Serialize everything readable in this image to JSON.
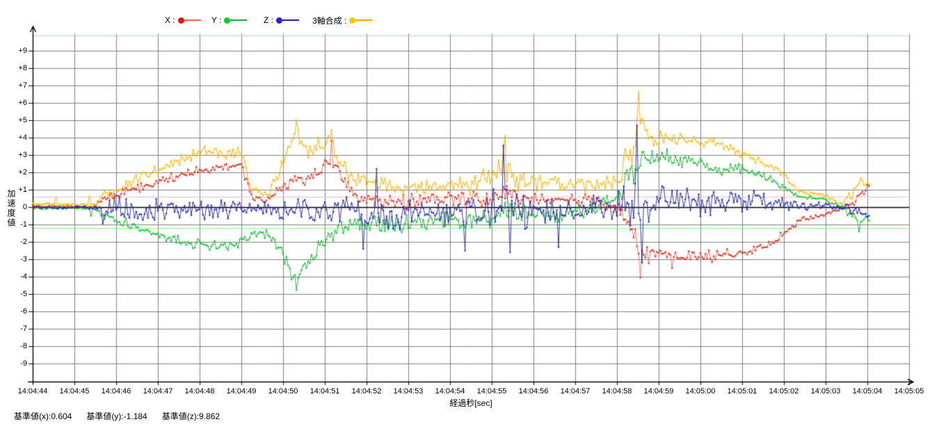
{
  "legend": {
    "items": [
      {
        "id": "x",
        "label": "X :",
        "dot_color": "#ee1100",
        "line_color": "#f4695f"
      },
      {
        "id": "y",
        "label": "Y :",
        "dot_color": "#10c828",
        "line_color": "#28a044"
      },
      {
        "id": "z",
        "label": "Z :",
        "dot_color": "#2222cc",
        "line_color": "#24248e"
      },
      {
        "id": "composite",
        "label": "3軸合成 :",
        "dot_color": "#ffc400",
        "line_color": "#f5a600"
      }
    ]
  },
  "axes": {
    "y_label": "加速度値",
    "x_label": "経過秒[sec]",
    "y_tick_labels": [
      "+9",
      "+8",
      "+7",
      "+6",
      "+5",
      "+4",
      "+3",
      "+2",
      "+1",
      "0",
      "-1",
      "-2",
      "-3",
      "-4",
      "-5",
      "-6",
      "-7",
      "-8",
      "-9"
    ],
    "x_tick_labels": [
      "14:04:44",
      "14:04:45",
      "14:04:46",
      "14:04:47",
      "14:04:48",
      "14:04:49",
      "14:04:50",
      "14:04:51",
      "14:04:52",
      "14:04:53",
      "14:04:54",
      "14:04:55",
      "14:04:56",
      "14:04:57",
      "14:04:58",
      "14:04:59",
      "14:05:00",
      "14:05:01",
      "14:05:02",
      "14:05:03",
      "14:05:04",
      "14:05:05"
    ]
  },
  "footer": {
    "items": [
      "基準値(x):0.604",
      "基準値(y):-1.184",
      "基準値(z):9.862"
    ]
  },
  "chart_data": {
    "type": "line",
    "title": "",
    "xlabel": "経過秒[sec]",
    "ylabel": "加速度値",
    "ylim": [
      -10,
      10
    ],
    "y_tick_step": 1,
    "grid": true,
    "legend_position": "top",
    "x_tick_labels": [
      "14:04:44",
      "14:04:45",
      "14:04:46",
      "14:04:47",
      "14:04:48",
      "14:04:49",
      "14:04:50",
      "14:04:51",
      "14:04:52",
      "14:04:53",
      "14:04:54",
      "14:04:55",
      "14:04:56",
      "14:04:57",
      "14:04:58",
      "14:04:59",
      "14:05:00",
      "14:05:01",
      "14:05:02",
      "14:05:03",
      "14:05:04",
      "14:05:05"
    ],
    "x_seconds_per_tick": 1,
    "sample_interval_sec": 0.04,
    "duration_sec": 20.04,
    "baselines": {
      "x": 0.604,
      "y": -1.184,
      "z": 9.862
    },
    "baseline_colors": {
      "x": "#ffc0cb",
      "y": "#90ee90",
      "z": "#b0d8e8"
    },
    "series": [
      {
        "name": "X",
        "line_color": "#f4695f",
        "marker_color": "#e02010",
        "envelope": [
          [
            0,
            0.03,
            0.1
          ],
          [
            1.5,
            0.03,
            0.1
          ],
          [
            1.62,
            0.35,
            0.3
          ],
          [
            2.2,
            0.8,
            0.3
          ],
          [
            3.0,
            1.5,
            0.35
          ],
          [
            3.8,
            2.05,
            0.35
          ],
          [
            4.5,
            2.3,
            0.3
          ],
          [
            5.0,
            2.35,
            0.3
          ],
          [
            5.12,
            1.4,
            0.5
          ],
          [
            5.25,
            0.55,
            0.3
          ],
          [
            5.6,
            0.35,
            0.3
          ],
          [
            5.9,
            1.1,
            0.5
          ],
          [
            6.4,
            1.7,
            0.5
          ],
          [
            6.9,
            1.9,
            0.5
          ],
          [
            7.12,
            2.9,
            0.75
          ],
          [
            7.35,
            2.0,
            0.6
          ],
          [
            7.6,
            0.9,
            0.5
          ],
          [
            8.2,
            0.35,
            0.5
          ],
          [
            9.0,
            0.35,
            0.5
          ],
          [
            10.0,
            0.45,
            0.5
          ],
          [
            11.0,
            0.5,
            0.45
          ],
          [
            11.3,
            0.85,
            0.6
          ],
          [
            11.7,
            0.4,
            0.5
          ],
          [
            12.5,
            0.45,
            0.5
          ],
          [
            13.4,
            0.4,
            0.45
          ],
          [
            13.9,
            0.1,
            0.4
          ],
          [
            14.25,
            -0.7,
            0.7
          ],
          [
            14.55,
            -2.7,
            1.1
          ],
          [
            14.85,
            -2.6,
            0.5
          ],
          [
            15.5,
            -2.9,
            0.45
          ],
          [
            16.2,
            -2.85,
            0.4
          ],
          [
            16.8,
            -2.7,
            0.35
          ],
          [
            17.3,
            -2.45,
            0.3
          ],
          [
            17.8,
            -1.9,
            0.3
          ],
          [
            18.2,
            -1.05,
            0.25
          ],
          [
            18.5,
            -0.7,
            0.2
          ],
          [
            19.0,
            -0.45,
            0.15
          ],
          [
            19.35,
            -0.08,
            0.1
          ],
          [
            19.6,
            0.1,
            0.3
          ],
          [
            19.8,
            0.7,
            0.45
          ],
          [
            20.04,
            1.15,
            0.2
          ]
        ],
        "spikes": [
          [
            7.14,
            3.82
          ],
          [
            14.56,
            -4.05
          ],
          [
            15.3,
            -3.5
          ],
          [
            20.0,
            1.3
          ]
        ]
      },
      {
        "name": "Y",
        "line_color": "#28a044",
        "marker_color": "#10c828",
        "envelope": [
          [
            0,
            -0.06,
            0.1
          ],
          [
            1.5,
            -0.06,
            0.1
          ],
          [
            1.62,
            -0.45,
            0.35
          ],
          [
            2.2,
            -0.85,
            0.3
          ],
          [
            3.0,
            -1.6,
            0.35
          ],
          [
            3.8,
            -2.15,
            0.4
          ],
          [
            4.5,
            -2.3,
            0.4
          ],
          [
            5.0,
            -2.05,
            0.4
          ],
          [
            5.2,
            -1.5,
            0.4
          ],
          [
            5.6,
            -1.45,
            0.4
          ],
          [
            5.95,
            -2.5,
            0.5
          ],
          [
            6.3,
            -4.3,
            0.45
          ],
          [
            6.55,
            -3.3,
            0.5
          ],
          [
            7.0,
            -2.0,
            0.5
          ],
          [
            7.4,
            -1.1,
            0.5
          ],
          [
            8.0,
            -0.9,
            0.65
          ],
          [
            9.0,
            -0.95,
            0.65
          ],
          [
            10.0,
            -0.75,
            0.6
          ],
          [
            11.0,
            -0.6,
            0.6
          ],
          [
            11.35,
            -0.25,
            0.6
          ],
          [
            12.0,
            -0.55,
            0.6
          ],
          [
            13.0,
            -0.35,
            0.55
          ],
          [
            13.9,
            0.35,
            0.55
          ],
          [
            14.3,
            1.6,
            0.9
          ],
          [
            14.65,
            2.9,
            0.7
          ],
          [
            15.2,
            2.9,
            0.5
          ],
          [
            15.8,
            2.6,
            0.45
          ],
          [
            16.3,
            2.2,
            0.4
          ],
          [
            17.0,
            2.2,
            0.35
          ],
          [
            17.4,
            1.9,
            0.3
          ],
          [
            18.0,
            1.2,
            0.25
          ],
          [
            18.35,
            0.6,
            0.15
          ],
          [
            19.0,
            0.42,
            0.12
          ],
          [
            19.35,
            0.05,
            0.1
          ],
          [
            19.6,
            -0.3,
            0.4
          ],
          [
            19.75,
            -0.95,
            0.4
          ],
          [
            20.04,
            -0.6,
            0.25
          ]
        ],
        "spikes": [
          [
            1.38,
            -0.5
          ],
          [
            6.32,
            -4.78
          ],
          [
            19.78,
            -1.4
          ]
        ]
      },
      {
        "name": "Z",
        "line_color": "#24248e",
        "marker_color": "#2828c8",
        "envelope": [
          [
            0,
            -0.02,
            0.1
          ],
          [
            1.5,
            -0.02,
            0.12
          ],
          [
            1.64,
            0.0,
            0.8
          ],
          [
            2.5,
            -0.12,
            0.75
          ],
          [
            3.5,
            -0.2,
            0.85
          ],
          [
            4.5,
            -0.15,
            0.8
          ],
          [
            5.05,
            -0.1,
            0.6
          ],
          [
            5.4,
            -0.05,
            0.35
          ],
          [
            5.75,
            -0.1,
            0.7
          ],
          [
            6.5,
            -0.2,
            0.9
          ],
          [
            7.2,
            -0.2,
            0.95
          ],
          [
            8.0,
            -0.35,
            1.05
          ],
          [
            9.0,
            -0.35,
            1.1
          ],
          [
            10.0,
            -0.25,
            1.0
          ],
          [
            11.0,
            -0.2,
            1.1
          ],
          [
            11.28,
            0.5,
            1.9
          ],
          [
            11.5,
            -0.5,
            1.5
          ],
          [
            12.0,
            -0.25,
            1.05
          ],
          [
            13.0,
            -0.15,
            0.95
          ],
          [
            13.9,
            0.0,
            1.05
          ],
          [
            14.5,
            0.3,
            2.4
          ],
          [
            14.85,
            0.2,
            1.2
          ],
          [
            15.5,
            0.3,
            1.0
          ],
          [
            16.5,
            0.25,
            0.9
          ],
          [
            17.3,
            0.3,
            0.8
          ],
          [
            18.0,
            0.15,
            0.5
          ],
          [
            18.5,
            0.08,
            0.3
          ],
          [
            19.0,
            0.1,
            0.25
          ],
          [
            19.35,
            0.0,
            0.12
          ],
          [
            19.6,
            -0.1,
            0.5
          ],
          [
            19.85,
            -0.3,
            0.45
          ],
          [
            20.04,
            -0.55,
            0.3
          ]
        ],
        "spikes": [
          [
            1.66,
            -0.95
          ],
          [
            7.9,
            -2.4
          ],
          [
            8.25,
            2.2
          ],
          [
            10.35,
            -2.5
          ],
          [
            11.26,
            3.55
          ],
          [
            11.42,
            -2.6
          ],
          [
            12.6,
            -2.3
          ],
          [
            14.48,
            4.7
          ],
          [
            14.6,
            -3.2
          ]
        ]
      },
      {
        "name": "3軸合成",
        "line_color": "#f5a600",
        "marker_color": "#ffc400",
        "envelope": [
          [
            0,
            0.16,
            0.08
          ],
          [
            1.5,
            0.16,
            0.1
          ],
          [
            1.66,
            0.7,
            0.4
          ],
          [
            2.2,
            1.2,
            0.4
          ],
          [
            3.0,
            2.2,
            0.45
          ],
          [
            3.8,
            3.0,
            0.45
          ],
          [
            4.2,
            3.35,
            0.45
          ],
          [
            4.6,
            3.1,
            0.4
          ],
          [
            5.0,
            3.3,
            0.4
          ],
          [
            5.15,
            1.6,
            0.5
          ],
          [
            5.3,
            0.85,
            0.35
          ],
          [
            5.65,
            0.75,
            0.3
          ],
          [
            5.95,
            2.4,
            0.6
          ],
          [
            6.3,
            4.35,
            0.5
          ],
          [
            6.6,
            3.25,
            0.5
          ],
          [
            7.1,
            3.8,
            0.7
          ],
          [
            7.4,
            2.4,
            0.55
          ],
          [
            7.8,
            1.55,
            0.5
          ],
          [
            8.5,
            1.3,
            0.6
          ],
          [
            9.5,
            1.25,
            0.55
          ],
          [
            10.5,
            1.25,
            0.6
          ],
          [
            11.3,
            2.4,
            1.3
          ],
          [
            11.65,
            1.4,
            0.6
          ],
          [
            12.5,
            1.35,
            0.55
          ],
          [
            13.5,
            1.2,
            0.5
          ],
          [
            14.05,
            1.4,
            0.8
          ],
          [
            14.5,
            4.2,
            2.2
          ],
          [
            14.85,
            4.0,
            0.65
          ],
          [
            15.5,
            3.85,
            0.5
          ],
          [
            16.2,
            3.8,
            0.45
          ],
          [
            16.8,
            3.3,
            0.4
          ],
          [
            17.2,
            2.9,
            0.35
          ],
          [
            17.7,
            2.3,
            0.3
          ],
          [
            18.0,
            1.9,
            0.3
          ],
          [
            18.35,
            0.85,
            0.15
          ],
          [
            19.0,
            0.68,
            0.12
          ],
          [
            19.35,
            0.18,
            0.1
          ],
          [
            19.6,
            0.7,
            0.5
          ],
          [
            19.8,
            1.35,
            0.3
          ],
          [
            20.04,
            1.3,
            0.2
          ]
        ],
        "spikes": [
          [
            0.55,
            0.55
          ],
          [
            1.35,
            0.62
          ],
          [
            6.3,
            5.0
          ],
          [
            7.14,
            4.42
          ],
          [
            11.3,
            4.1
          ],
          [
            14.52,
            6.62
          ],
          [
            19.82,
            1.68
          ]
        ]
      }
    ]
  }
}
